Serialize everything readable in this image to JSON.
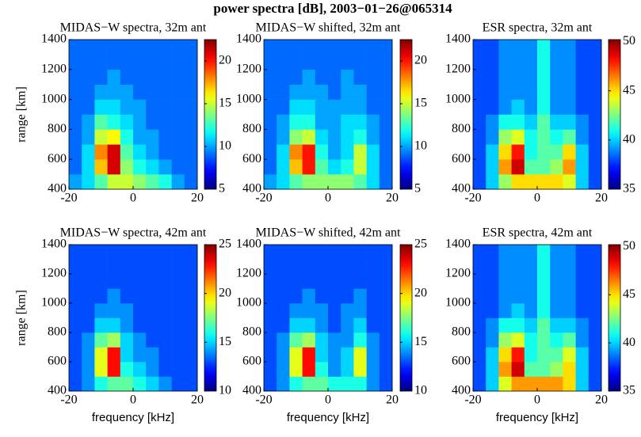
{
  "title": "power spectra [dB], 2003−01−26@065314",
  "chart_data": [
    {
      "type": "heatmap",
      "title": "MIDAS−W spectra, 32m ant",
      "ylabel": "range [km]",
      "colormap": "jet",
      "x": [
        -18,
        -14,
        -10,
        -6,
        -2,
        2,
        6,
        10,
        14,
        18
      ],
      "y": [
        450,
        550,
        650,
        750,
        850,
        950,
        1050,
        1150,
        1250,
        1350
      ],
      "z": [
        [
          10,
          11,
          13,
          15,
          15,
          14,
          13,
          12,
          10,
          9
        ],
        [
          9,
          11,
          17,
          21,
          14,
          12,
          11,
          10,
          9,
          9
        ],
        [
          9,
          11,
          18,
          21,
          13,
          11,
          10,
          9,
          9,
          9
        ],
        [
          9,
          10,
          15,
          16,
          12,
          10,
          10,
          9,
          9,
          9
        ],
        [
          9,
          10,
          13,
          12,
          11,
          10,
          9,
          9,
          9,
          9
        ],
        [
          9,
          9,
          11,
          11,
          10,
          10,
          9,
          9,
          9,
          9
        ],
        [
          9,
          9,
          10,
          10,
          10,
          9,
          9,
          9,
          9,
          9
        ],
        [
          9,
          9,
          9,
          10,
          9,
          9,
          9,
          9,
          9,
          9
        ],
        [
          9,
          9,
          9,
          9,
          9,
          9,
          9,
          9,
          9,
          9
        ],
        [
          9,
          9,
          9,
          9,
          9,
          9,
          9,
          9,
          9,
          9
        ]
      ],
      "xlim": [
        -20,
        20
      ],
      "ylim": [
        400,
        1400
      ],
      "xticks": [
        -20,
        0,
        20
      ],
      "yticks": [
        400,
        600,
        800,
        1000,
        1200,
        1400
      ],
      "clim": [
        5,
        22.5
      ],
      "cticks": [
        5,
        10,
        15,
        20
      ]
    },
    {
      "type": "heatmap",
      "title": "MIDAS−W shifted, 32m ant",
      "colormap": "jet",
      "x": [
        -18,
        -14,
        -10,
        -6,
        -2,
        2,
        6,
        10,
        14,
        18
      ],
      "y": [
        450,
        550,
        650,
        750,
        850,
        950,
        1050,
        1150,
        1250,
        1350
      ],
      "z": [
        [
          10,
          11,
          13,
          14,
          14,
          14,
          14,
          13,
          11,
          9
        ],
        [
          9,
          11,
          17,
          20,
          13,
          11,
          12,
          15,
          11,
          9
        ],
        [
          9,
          11,
          18,
          20,
          12,
          10,
          11,
          15,
          11,
          9
        ],
        [
          9,
          10,
          14,
          15,
          11,
          10,
          11,
          12,
          10,
          9
        ],
        [
          9,
          10,
          12,
          12,
          10,
          10,
          11,
          11,
          10,
          9
        ],
        [
          9,
          9,
          11,
          11,
          10,
          10,
          10,
          10,
          9,
          9
        ],
        [
          9,
          9,
          10,
          10,
          10,
          9,
          10,
          10,
          9,
          9
        ],
        [
          9,
          9,
          9,
          10,
          9,
          9,
          10,
          9,
          9,
          9
        ],
        [
          9,
          9,
          9,
          9,
          9,
          9,
          9,
          9,
          9,
          9
        ],
        [
          9,
          9,
          9,
          9,
          9,
          9,
          9,
          9,
          9,
          9
        ]
      ],
      "xlim": [
        -20,
        20
      ],
      "ylim": [
        400,
        1400
      ],
      "xticks": [
        -20,
        0,
        20
      ],
      "yticks": [
        400,
        600,
        800,
        1000,
        1200,
        1400
      ],
      "clim": [
        5,
        22.5
      ],
      "cticks": [
        5,
        10,
        15,
        20
      ]
    },
    {
      "type": "heatmap",
      "title": "ESR spectra, 32m ant",
      "colormap": "jet",
      "x": [
        -18,
        -14,
        -10,
        -6,
        -2,
        2,
        6,
        10,
        14,
        18
      ],
      "y": [
        450,
        550,
        650,
        750,
        850,
        950,
        1050,
        1150,
        1250,
        1350
      ],
      "z": [
        [
          38,
          40,
          43,
          45,
          45,
          45,
          45,
          44,
          40,
          38
        ],
        [
          38,
          40,
          46,
          49,
          42,
          42,
          43,
          46,
          40,
          38
        ],
        [
          38,
          40,
          45,
          48,
          41,
          42,
          42,
          45,
          40,
          38
        ],
        [
          38,
          39,
          43,
          44,
          41,
          42,
          41,
          42,
          39,
          38
        ],
        [
          38,
          39,
          41,
          41,
          40,
          42,
          40,
          40,
          39,
          38
        ],
        [
          38,
          38,
          39,
          40,
          39,
          41,
          39,
          39,
          38,
          38
        ],
        [
          38,
          38,
          39,
          39,
          39,
          41,
          39,
          39,
          38,
          38
        ],
        [
          38,
          38,
          39,
          39,
          39,
          41,
          39,
          39,
          38,
          38
        ],
        [
          38,
          38,
          39,
          39,
          39,
          41,
          39,
          39,
          38,
          38
        ],
        [
          38,
          38,
          39,
          39,
          39,
          41,
          39,
          39,
          38,
          38
        ]
      ],
      "xlim": [
        -20,
        20
      ],
      "ylim": [
        400,
        1400
      ],
      "xticks": [
        -20,
        0,
        20
      ],
      "yticks": [
        400,
        600,
        800,
        1000,
        1200,
        1400
      ],
      "clim": [
        35,
        50.2
      ],
      "cticks": [
        35,
        40,
        45,
        50
      ]
    },
    {
      "type": "heatmap",
      "title": "MIDAS−W spectra, 42m ant",
      "ylabel": "range [km]",
      "xlabel": "frequency [kHz]",
      "colormap": "jet",
      "x": [
        -18,
        -14,
        -10,
        -6,
        -2,
        2,
        6,
        10,
        14,
        18
      ],
      "y": [
        450,
        550,
        650,
        750,
        850,
        950,
        1050,
        1150,
        1250,
        1350
      ],
      "z": [
        [
          13,
          14,
          16,
          17,
          17,
          16,
          15,
          14,
          13,
          13
        ],
        [
          13,
          14,
          19,
          23,
          16,
          15,
          14,
          13,
          13,
          13
        ],
        [
          13,
          14,
          19,
          23,
          15,
          14,
          14,
          13,
          13,
          13
        ],
        [
          13,
          14,
          17,
          18,
          15,
          14,
          13,
          13,
          13,
          13
        ],
        [
          13,
          13,
          15,
          15,
          14,
          13,
          13,
          13,
          13,
          13
        ],
        [
          13,
          13,
          14,
          14,
          14,
          13,
          13,
          13,
          13,
          13
        ],
        [
          13,
          13,
          13,
          14,
          13,
          13,
          13,
          13,
          13,
          13
        ],
        [
          13,
          13,
          13,
          13,
          13,
          13,
          13,
          13,
          13,
          13
        ],
        [
          13,
          13,
          13,
          13,
          13,
          13,
          13,
          13,
          13,
          13
        ],
        [
          13,
          13,
          13,
          13,
          13,
          13,
          13,
          13,
          13,
          13
        ]
      ],
      "xlim": [
        -20,
        20
      ],
      "ylim": [
        400,
        1400
      ],
      "xticks": [
        -20,
        0,
        20
      ],
      "yticks": [
        400,
        600,
        800,
        1000,
        1200,
        1400
      ],
      "clim": [
        10,
        25
      ],
      "cticks": [
        10,
        15,
        20,
        25
      ]
    },
    {
      "type": "heatmap",
      "title": "MIDAS−W shifted, 42m ant",
      "xlabel": "frequency [kHz]",
      "colormap": "jet",
      "x": [
        -18,
        -14,
        -10,
        -6,
        -2,
        2,
        6,
        10,
        14,
        18
      ],
      "y": [
        450,
        550,
        650,
        750,
        850,
        950,
        1050,
        1150,
        1250,
        1350
      ],
      "z": [
        [
          13,
          14,
          16,
          17,
          17,
          16,
          16,
          16,
          14,
          13
        ],
        [
          13,
          14,
          19,
          23,
          16,
          14,
          15,
          19,
          14,
          13
        ],
        [
          13,
          14,
          19,
          23,
          15,
          14,
          15,
          19,
          14,
          13
        ],
        [
          13,
          14,
          17,
          18,
          15,
          14,
          14,
          16,
          14,
          13
        ],
        [
          13,
          13,
          15,
          15,
          14,
          13,
          14,
          15,
          13,
          13
        ],
        [
          13,
          13,
          14,
          14,
          14,
          13,
          14,
          14,
          13,
          13
        ],
        [
          13,
          13,
          13,
          14,
          13,
          13,
          13,
          14,
          13,
          13
        ],
        [
          13,
          13,
          13,
          13,
          13,
          13,
          13,
          13,
          13,
          13
        ],
        [
          13,
          13,
          13,
          13,
          13,
          13,
          13,
          13,
          13,
          13
        ],
        [
          13,
          13,
          13,
          13,
          13,
          13,
          13,
          13,
          13,
          13
        ]
      ],
      "xlim": [
        -20,
        20
      ],
      "ylim": [
        400,
        1400
      ],
      "xticks": [
        -20,
        0,
        20
      ],
      "yticks": [
        400,
        600,
        800,
        1000,
        1200,
        1400
      ],
      "clim": [
        10,
        25
      ],
      "cticks": [
        10,
        15,
        20,
        25
      ]
    },
    {
      "type": "heatmap",
      "title": "ESR spectra, 42m ant",
      "xlabel": "frequency [kHz]",
      "colormap": "jet",
      "x": [
        -18,
        -14,
        -10,
        -6,
        -2,
        2,
        6,
        10,
        14,
        18
      ],
      "y": [
        450,
        550,
        650,
        750,
        850,
        950,
        1050,
        1150,
        1250,
        1350
      ],
      "z": [
        [
          38,
          40,
          44,
          46,
          46,
          46,
          46,
          45,
          40,
          38
        ],
        [
          38,
          40,
          46,
          49,
          42,
          42,
          43,
          45,
          40,
          38
        ],
        [
          38,
          40,
          45,
          48,
          41,
          42,
          42,
          44,
          40,
          38
        ],
        [
          38,
          39,
          43,
          44,
          41,
          42,
          41,
          42,
          39,
          38
        ],
        [
          38,
          39,
          41,
          41,
          40,
          42,
          40,
          40,
          39,
          38
        ],
        [
          38,
          38,
          39,
          40,
          39,
          41,
          39,
          39,
          38,
          38
        ],
        [
          38,
          38,
          39,
          39,
          39,
          41,
          39,
          39,
          38,
          38
        ],
        [
          38,
          38,
          39,
          39,
          39,
          41,
          39,
          39,
          38,
          38
        ],
        [
          38,
          38,
          39,
          39,
          39,
          41,
          39,
          39,
          38,
          38
        ],
        [
          38,
          38,
          39,
          39,
          39,
          41,
          39,
          39,
          38,
          38
        ]
      ],
      "xlim": [
        -20,
        20
      ],
      "ylim": [
        400,
        1400
      ],
      "xticks": [
        -20,
        0,
        20
      ],
      "yticks": [
        400,
        600,
        800,
        1000,
        1200,
        1400
      ],
      "clim": [
        35,
        50.2
      ],
      "cticks": [
        35,
        40,
        45,
        50
      ]
    }
  ]
}
